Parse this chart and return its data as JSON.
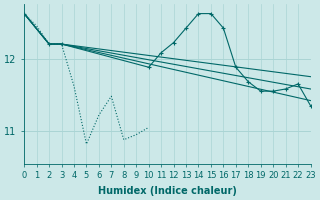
{
  "xlabel": "Humidex (Indice chaleur)",
  "bg_color": "#cce8e8",
  "grid_color": "#aad4d4",
  "line_color": "#006868",
  "x_min": 0,
  "x_max": 23,
  "y_min": 10.55,
  "y_max": 12.75,
  "yticks": [
    11,
    12
  ],
  "xticks": [
    0,
    1,
    2,
    3,
    4,
    5,
    6,
    7,
    8,
    9,
    10,
    11,
    12,
    13,
    14,
    15,
    16,
    17,
    18,
    19,
    20,
    21,
    22,
    23
  ],
  "series_dotted_x": [
    0,
    1,
    2,
    3,
    4,
    5,
    6,
    7,
    8,
    9,
    10
  ],
  "series_dotted_y": [
    12.62,
    12.45,
    12.2,
    12.2,
    11.62,
    10.82,
    11.22,
    11.48,
    10.88,
    10.95,
    11.05
  ],
  "series_marker_x": [
    0,
    2,
    3,
    10,
    11,
    12,
    13,
    14,
    15,
    16,
    17,
    18,
    19,
    20,
    21,
    22,
    23
  ],
  "series_marker_y": [
    12.62,
    12.2,
    12.2,
    11.88,
    12.08,
    12.22,
    12.42,
    12.62,
    12.62,
    12.42,
    11.88,
    11.68,
    11.55,
    11.55,
    11.58,
    11.65,
    11.35
  ],
  "series_line1_x": [
    0,
    2,
    3,
    23
  ],
  "series_line1_y": [
    12.62,
    12.2,
    12.2,
    11.75
  ],
  "series_line2_x": [
    0,
    2,
    3,
    23
  ],
  "series_line2_y": [
    12.62,
    12.2,
    12.2,
    11.58
  ],
  "series_line3_x": [
    0,
    2,
    3,
    23
  ],
  "series_line3_y": [
    12.62,
    12.2,
    12.2,
    11.42
  ],
  "font_size": 7
}
